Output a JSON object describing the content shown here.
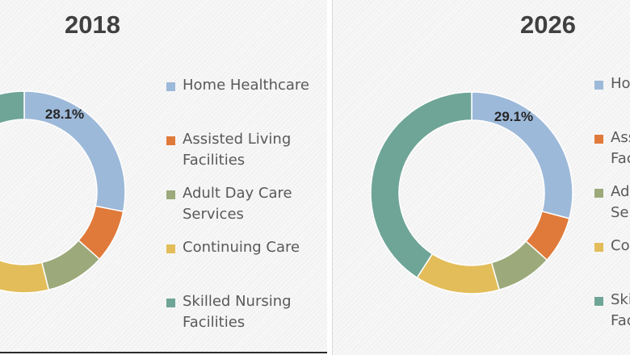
{
  "colors": {
    "home_healthcare": "#9db9d9",
    "assisted_living": "#e07a3a",
    "adult_day_care": "#9ca97a",
    "continuing_care": "#e2bd5a",
    "skilled_nursing": "#6fa597"
  },
  "legend_items": [
    {
      "label": "Home Healthcare",
      "color": "#9db9d9"
    },
    {
      "label": "Assisted Living Facilities",
      "color": "#e07a3a"
    },
    {
      "label": "Adult Day Care Services",
      "color": "#9ca97a"
    },
    {
      "label": "Continuing Care",
      "color": "#e2bd5a"
    },
    {
      "label": "Skilled Nursing Facilities",
      "color": "#6fa597"
    }
  ],
  "chart_data": [
    {
      "type": "pie",
      "title": "2018",
      "categories": [
        "Home Healthcare",
        "Assisted Living Facilities",
        "Adult Day Care Services",
        "Continuing Care",
        "Skilled Nursing Facilities"
      ],
      "values": [
        28.1,
        8.5,
        9.5,
        11.0,
        42.9
      ],
      "data_labels": [
        "28.1%",
        "",
        "",
        "",
        ""
      ],
      "legend": "right"
    },
    {
      "type": "pie",
      "title": "2026",
      "categories": [
        "Home Healthcare",
        "Assisted Living Facilities",
        "Adult Day Care Services",
        "Continuing Care",
        "Skilled Nursing Facilities"
      ],
      "values": [
        29.1,
        7.5,
        9.0,
        13.5,
        40.9
      ],
      "data_labels": [
        "29.1%",
        "",
        "",
        "",
        ""
      ],
      "legend": "right"
    }
  ]
}
